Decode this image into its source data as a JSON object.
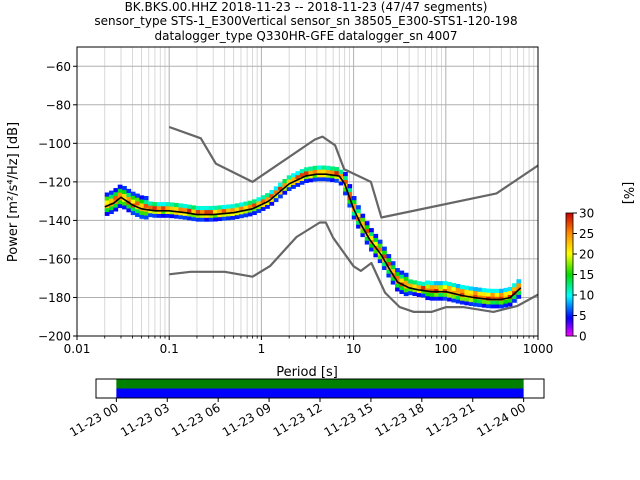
{
  "chart_data": [
    {
      "type": "heatmap",
      "title_lines": [
        "BK.BKS.00.HHZ   2018-11-23 -- 2018-11-23  (47/47 segments)",
        "sensor_type STS-1_E300Vertical sensor_sn 38505_E300-STS1-120-198",
        "datalogger_type Q330HR-GFE datalogger_sn 4007"
      ],
      "xlabel": "Period [s]",
      "ylabel": "Power [m²/s⁴/Hz] [dB]",
      "x_scale": "log",
      "xlim": [
        0.01,
        1000
      ],
      "ylim": [
        -200,
        -50
      ],
      "x_ticks": [
        0.01,
        0.1,
        1,
        10,
        100,
        1000
      ],
      "x_tick_labels": [
        "0.01",
        "0.1",
        "1",
        "10",
        "100",
        "1000"
      ],
      "y_ticks": [
        -200,
        -180,
        -160,
        -140,
        -120,
        -100,
        -80,
        -60
      ],
      "y_tick_labels": [
        "−200",
        "−180",
        "−160",
        "−140",
        "−120",
        "−100",
        "−80",
        "−60"
      ],
      "grid": true,
      "colorbar": {
        "label": "[%]",
        "range": [
          0,
          30
        ],
        "ticks": [
          0,
          5,
          10,
          15,
          20,
          25,
          30
        ],
        "tick_labels": [
          "0",
          "5",
          "10",
          "15",
          "20",
          "25",
          "30"
        ]
      },
      "mean_psd": {
        "period": [
          0.02,
          0.025,
          0.03,
          0.04,
          0.05,
          0.07,
          0.1,
          0.15,
          0.2,
          0.3,
          0.5,
          0.8,
          1.2,
          2,
          3,
          4,
          5,
          7,
          8,
          10,
          12,
          15,
          20,
          25,
          30,
          40,
          50,
          70,
          100,
          150,
          200,
          300,
          400,
          500,
          650
        ],
        "power": [
          -133,
          -131,
          -128,
          -132,
          -134,
          -135,
          -135,
          -136,
          -137,
          -137,
          -136,
          -134,
          -130,
          -121,
          -117,
          -116,
          -116,
          -117,
          -121,
          -134,
          -142,
          -150,
          -158,
          -166,
          -172,
          -175,
          -176,
          -177,
          -177,
          -179,
          -180,
          -181,
          -181,
          -180,
          -175
        ]
      },
      "noise_model_high": {
        "period": [
          0.1,
          0.22,
          0.32,
          0.8,
          3.8,
          4.6,
          6.3,
          7.9,
          15.4,
          20,
          354.8,
          1000
        ],
        "power": [
          -91.5,
          -97.4,
          -110.5,
          -120,
          -98,
          -96.5,
          -101,
          -113.5,
          -120,
          -138.5,
          -126,
          -111.5
        ]
      },
      "noise_model_low": {
        "period": [
          0.1,
          0.17,
          0.4,
          0.8,
          1.24,
          2.4,
          4.3,
          5,
          6,
          10,
          12,
          15.6,
          21.9,
          31.6,
          45,
          70,
          101,
          154,
          328,
          600,
          1000
        ],
        "power": [
          -168,
          -166.7,
          -166.7,
          -169.2,
          -163.7,
          -148.6,
          -141.1,
          -141.1,
          -149,
          -163.8,
          -166.2,
          -162.1,
          -177.5,
          -185,
          -187.5,
          -187.5,
          -185,
          -185,
          -187.5,
          -184.4,
          -178.5
        ]
      }
    },
    {
      "type": "timeline",
      "tick_labels": [
        "11-23 00",
        "11-23 03",
        "11-23 06",
        "11-23 09",
        "11-23 12",
        "11-23 15",
        "11-23 18",
        "11-23 21",
        "11-24 00"
      ],
      "tick_hours": [
        0,
        3,
        6,
        9,
        12,
        15,
        18,
        21,
        24
      ],
      "xlim_hours": [
        -1.2,
        25.2
      ],
      "data_coverage_hours": [
        0,
        24
      ],
      "psd_coverage_hours": [
        0,
        24
      ],
      "colors": {
        "data": "#008000",
        "psd": "#0000ff"
      }
    }
  ]
}
